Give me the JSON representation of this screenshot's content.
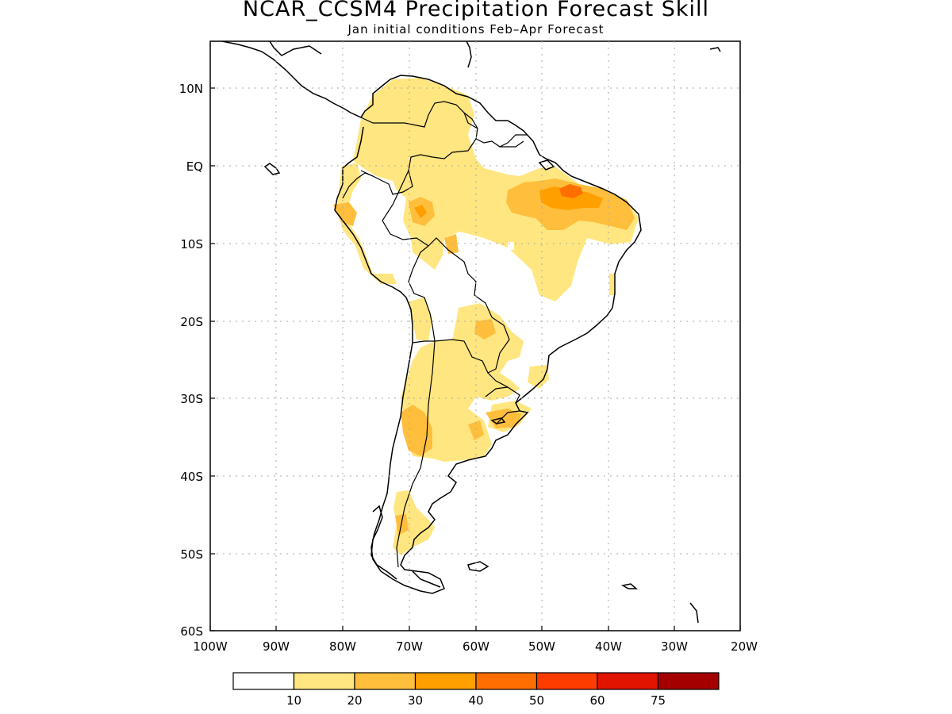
{
  "title": "NCAR_CCSM4 Precipitation Forecast Skill",
  "subtitle": "Jan initial conditions  Feb–Apr Forecast",
  "map": {
    "lon_range": [
      -100,
      -20
    ],
    "lat_range": [
      -60,
      15
    ],
    "x_ticks": [
      "100W",
      "90W",
      "80W",
      "70W",
      "60W",
      "50W",
      "40W",
      "30W",
      "20W"
    ],
    "y_ticks": [
      "10N",
      "EQ",
      "10S",
      "20S",
      "30S",
      "40S",
      "50S",
      "60S"
    ],
    "grid": "dotted"
  },
  "colorbar": {
    "labels": [
      "10",
      "20",
      "30",
      "40",
      "50",
      "60",
      "75"
    ],
    "colors": [
      "#ffffff",
      "#ffe680",
      "#ffbe3c",
      "#ffa000",
      "#ff6e00",
      "#ff3c00",
      "#e11400",
      "#a50000"
    ]
  }
}
